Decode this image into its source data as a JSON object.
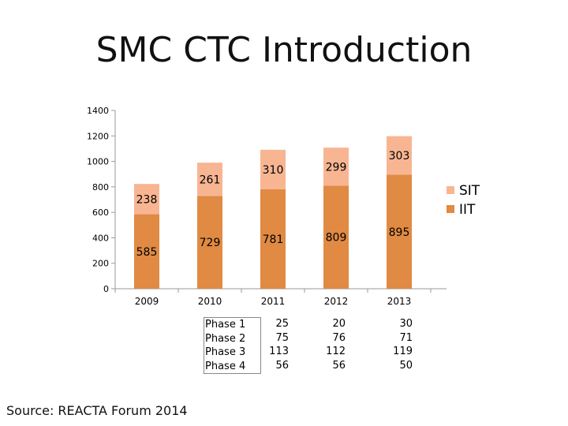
{
  "page": {
    "title": "SMC CTC Introduction",
    "source": "Source: REACTA Forum 2014"
  },
  "colors": {
    "SIT": "#F8B592",
    "IIT": "#E08A43",
    "axis": "#999999"
  },
  "chart_data": {
    "type": "bar",
    "stacked": true,
    "title": "",
    "xlabel": "",
    "ylabel": "",
    "ylim": [
      0,
      1400
    ],
    "yticks": [
      0,
      200,
      400,
      600,
      800,
      1000,
      1200,
      1400
    ],
    "categories": [
      "2009",
      "2010",
      "2011",
      "2012",
      "2013"
    ],
    "series": [
      {
        "name": "IIT",
        "values": [
          585,
          729,
          781,
          809,
          895
        ]
      },
      {
        "name": "SIT",
        "values": [
          238,
          261,
          310,
          299,
          303
        ]
      }
    ],
    "legend": [
      "SIT",
      "IIT"
    ],
    "legend_position": "right",
    "grid": false
  },
  "phase_table": {
    "rows": [
      "Phase 1",
      "Phase 2",
      "Phase 3",
      "Phase 4"
    ],
    "columns": [
      {
        "year": "2011",
        "values": [
          "25",
          "75",
          "113",
          "56"
        ]
      },
      {
        "year": "2012",
        "values": [
          "20",
          "76",
          "112",
          "56"
        ]
      },
      {
        "year": "2013",
        "values": [
          "30",
          "71",
          "119",
          "50"
        ]
      }
    ]
  }
}
